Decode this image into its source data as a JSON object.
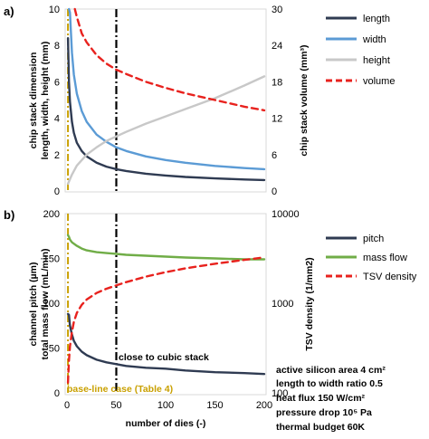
{
  "figure": {
    "xlabel": "number of dies (-)",
    "x_ticks": [
      "0",
      "50",
      "100",
      "150",
      "200"
    ],
    "vline_label_cubic": "close to cubic stack",
    "vline_label_baseline": "base-line case (Table 4)",
    "annotations": [
      "active silicon area 4 cm²",
      "length to width ratio 0.5",
      "heat flux 150 W/cm²",
      "pressure drop 10⁵ Pa",
      "thermal budget 60K"
    ]
  },
  "colors": {
    "dark": "#2f3b52",
    "blue": "#5b9bd5",
    "gray": "#c8c8c8",
    "red": "#e8221e",
    "green": "#70ad47",
    "gold": "#c9a000",
    "black": "#000000"
  },
  "chart_data": [
    {
      "panel": "a)",
      "type": "line",
      "ylabel_left_1": "chip stack dimension",
      "ylabel_left_2": "length, width, height (mm)",
      "ylabel_right": "chip stack volume (mm³)",
      "left_ticks": [
        "0",
        "2",
        "4",
        "6",
        "8",
        "10"
      ],
      "right_ticks": [
        "0",
        "6",
        "12",
        "18",
        "24",
        "30"
      ],
      "ylim_left": [
        0,
        10
      ],
      "ylim_right": [
        0,
        30
      ],
      "xlim": [
        0,
        200
      ],
      "vlines": [
        1,
        50
      ],
      "legend_position": "right",
      "series": [
        {
          "name": "length",
          "axis": "left",
          "color": "dark",
          "dash": false,
          "x": [
            1,
            2,
            3,
            5,
            7,
            10,
            15,
            20,
            30,
            40,
            50,
            60,
            80,
            100,
            120,
            150,
            180,
            200
          ],
          "y": [
            8.4,
            6.0,
            4.9,
            3.8,
            3.2,
            2.65,
            2.2,
            1.9,
            1.55,
            1.34,
            1.2,
            1.1,
            0.95,
            0.85,
            0.77,
            0.69,
            0.63,
            0.6
          ]
        },
        {
          "name": "width",
          "axis": "left",
          "color": "blue",
          "dash": false,
          "x": [
            2,
            3,
            5,
            7,
            10,
            15,
            20,
            30,
            40,
            50,
            60,
            80,
            100,
            120,
            150,
            180,
            200
          ],
          "y": [
            10.0,
            9.8,
            7.6,
            6.4,
            5.35,
            4.4,
            3.8,
            3.1,
            2.7,
            2.4,
            2.2,
            1.9,
            1.7,
            1.55,
            1.38,
            1.26,
            1.2
          ]
        },
        {
          "name": "height",
          "axis": "left",
          "color": "gray",
          "dash": false,
          "x": [
            1,
            5,
            10,
            20,
            30,
            40,
            50,
            60,
            80,
            100,
            120,
            150,
            180,
            200
          ],
          "y": [
            0.4,
            0.9,
            1.4,
            2.0,
            2.4,
            2.75,
            3.0,
            3.25,
            3.7,
            4.1,
            4.5,
            5.1,
            5.8,
            6.3
          ]
        },
        {
          "name": "volume",
          "axis": "right",
          "color": "red",
          "dash": true,
          "x": [
            8,
            10,
            15,
            20,
            30,
            40,
            50,
            60,
            80,
            100,
            120,
            150,
            180,
            200
          ],
          "y": [
            30,
            28.7,
            26.0,
            24.5,
            22.4,
            21.0,
            20.0,
            19.3,
            18.0,
            17.0,
            16.1,
            15.0,
            13.9,
            13.3
          ]
        }
      ]
    },
    {
      "panel": "b)",
      "type": "line",
      "ylabel_left_1": "channel pitch (µm)",
      "ylabel_left_2": "total mass flow (mL/min)",
      "ylabel_right": "TSV density (1/mm2)",
      "left_ticks": [
        "0",
        "50",
        "100",
        "150",
        "200"
      ],
      "right_ticks": [
        "100",
        "1000",
        "10000"
      ],
      "ylim_left": [
        0,
        200
      ],
      "ylim_right": [
        100,
        10000
      ],
      "right_scale": "log",
      "xlim": [
        0,
        200
      ],
      "vlines": [
        1,
        50
      ],
      "legend_position": "right",
      "series": [
        {
          "name": "pitch",
          "axis": "left",
          "color": "dark",
          "dash": false,
          "x": [
            1,
            2,
            3,
            5,
            7,
            10,
            15,
            20,
            30,
            40,
            50,
            60,
            80,
            100,
            120,
            150,
            180,
            200
          ],
          "y": [
            88,
            87,
            75,
            65,
            58,
            52,
            46,
            42,
            37,
            34,
            32,
            30,
            28,
            27,
            25,
            23,
            22,
            21
          ]
        },
        {
          "name": "mass flow",
          "axis": "left",
          "color": "green",
          "dash": false,
          "x": [
            1,
            2,
            3,
            5,
            10,
            15,
            20,
            30,
            40,
            50,
            60,
            80,
            100,
            120,
            150,
            180,
            200
          ],
          "y": [
            176,
            174,
            171,
            168,
            164,
            161,
            159,
            157,
            156,
            155,
            154,
            153,
            152,
            151,
            150,
            149,
            149
          ]
        },
        {
          "name": "TSV density",
          "axis": "right",
          "color": "red",
          "dash": true,
          "x": [
            1,
            2,
            3,
            5,
            7,
            10,
            15,
            20,
            30,
            40,
            50,
            60,
            80,
            100,
            120,
            150,
            180,
            200
          ],
          "y": [
            130,
            230,
            330,
            480,
            620,
            780,
            960,
            1100,
            1300,
            1450,
            1580,
            1720,
            1980,
            2220,
            2450,
            2760,
            3050,
            3250
          ]
        }
      ]
    }
  ]
}
